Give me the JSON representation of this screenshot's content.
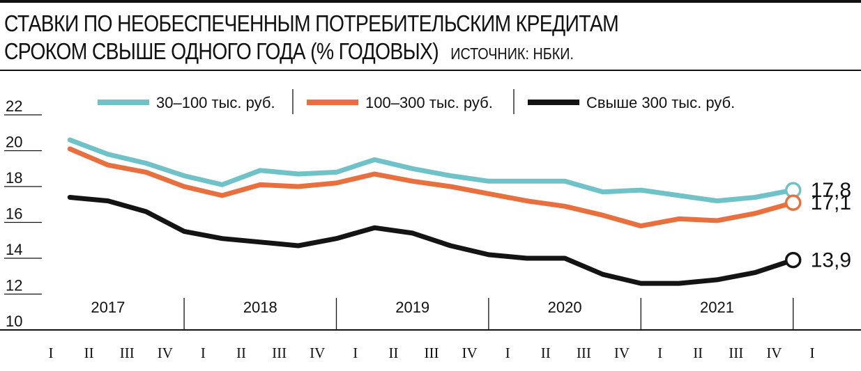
{
  "header": {
    "title_line1": "СТАВКИ ПО НЕОБЕСПЕЧЕННЫМ ПОТРЕБИТЕЛЬСКИМ КРЕДИТАМ",
    "title_line2": "СРОКОМ СВЫШЕ ОДНОГО ГОДА (% ГОДОВЫХ)",
    "source": "ИСТОЧНИК: НБКИ."
  },
  "chart_data": {
    "type": "line",
    "ylim": [
      10,
      22
    ],
    "yticks": [
      "22",
      "20",
      "18",
      "16",
      "14",
      "12",
      "10"
    ],
    "years": [
      "2017",
      "2018",
      "2019",
      "2020",
      "2021"
    ],
    "quarter_labels": [
      "I",
      "II",
      "III",
      "IV",
      "I",
      "II",
      "III",
      "IV",
      "I",
      "II",
      "III",
      "IV",
      "I",
      "II",
      "III",
      "IV",
      "I",
      "II",
      "III",
      "IV",
      "I"
    ],
    "legend_placement": "top",
    "series": [
      {
        "name": "30–100 тыс. руб.",
        "color": "#6fc2c8",
        "values": [
          20.6,
          19.8,
          19.3,
          18.6,
          18.1,
          18.9,
          18.7,
          18.8,
          19.5,
          19.0,
          18.6,
          18.3,
          18.3,
          18.3,
          17.7,
          17.8,
          17.5,
          17.2,
          17.4,
          17.8
        ],
        "end_label": "17,8"
      },
      {
        "name": "100–300 тыс. руб.",
        "color": "#e8703e",
        "values": [
          20.1,
          19.2,
          18.8,
          18.0,
          17.5,
          18.1,
          18.0,
          18.2,
          18.7,
          18.3,
          18.0,
          17.6,
          17.2,
          16.9,
          16.4,
          15.8,
          16.2,
          16.1,
          16.5,
          17.1
        ],
        "end_label": "17,1"
      },
      {
        "name": "Свыше 300 тыс. руб.",
        "color": "#141414",
        "values": [
          17.4,
          17.2,
          16.6,
          15.5,
          15.1,
          14.9,
          14.7,
          15.1,
          15.7,
          15.4,
          14.7,
          14.2,
          14.0,
          14.0,
          13.1,
          12.6,
          12.6,
          12.8,
          13.2,
          13.9
        ],
        "end_label": "13,9"
      }
    ]
  }
}
